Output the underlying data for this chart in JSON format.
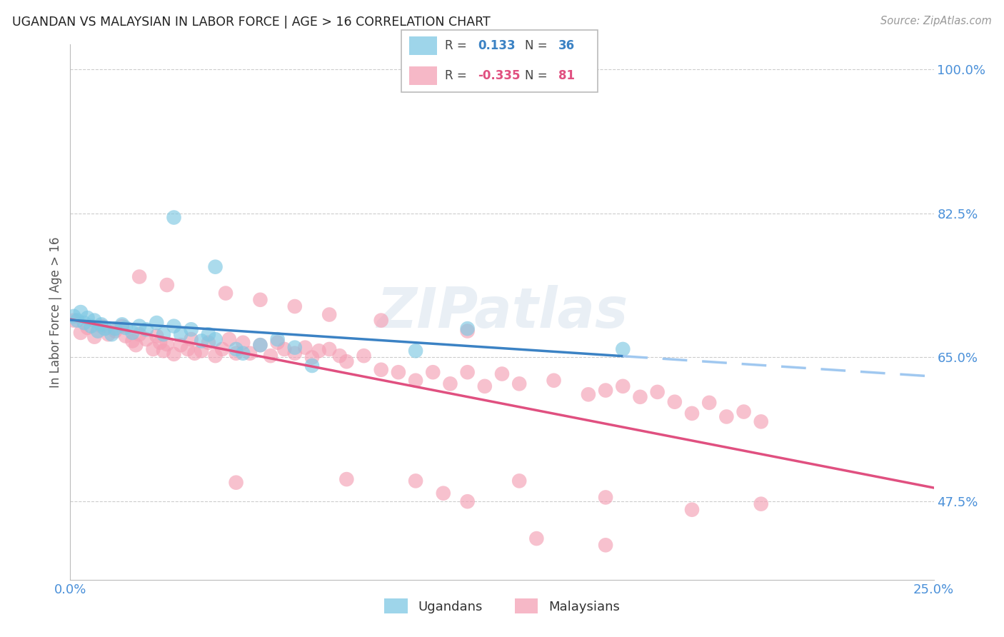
{
  "title": "UGANDAN VS MALAYSIAN IN LABOR FORCE | AGE > 16 CORRELATION CHART",
  "source": "Source: ZipAtlas.com",
  "ylabel": "In Labor Force | Age > 16",
  "xlim": [
    0.0,
    0.25
  ],
  "ylim": [
    0.38,
    1.03
  ],
  "xtick_positions": [
    0.0,
    0.05,
    0.1,
    0.15,
    0.2,
    0.25
  ],
  "xtick_labels": [
    "0.0%",
    "",
    "",
    "",
    "",
    "25.0%"
  ],
  "ytick_vals_right": [
    0.475,
    0.65,
    0.825,
    1.0
  ],
  "ytick_labels_right": [
    "47.5%",
    "65.0%",
    "82.5%",
    "100.0%"
  ],
  "r_ugandan": 0.133,
  "n_ugandan": 36,
  "r_malaysian": -0.335,
  "n_malaysian": 81,
  "ugandan_color": "#7ec8e3",
  "malaysian_color": "#f4a0b5",
  "ugandan_line_color": "#3b82c4",
  "malaysian_line_color": "#e05080",
  "trend_line_dashed_color": "#a0c8f0",
  "background_color": "#ffffff",
  "grid_color": "#cccccc",
  "axis_label_color": "#4a90d9",
  "title_color": "#222222",
  "source_color": "#999999",
  "ylabel_color": "#555555",
  "ugandan_scatter": [
    [
      0.001,
      0.7
    ],
    [
      0.002,
      0.695
    ],
    [
      0.003,
      0.705
    ],
    [
      0.004,
      0.692
    ],
    [
      0.005,
      0.698
    ],
    [
      0.006,
      0.688
    ],
    [
      0.007,
      0.695
    ],
    [
      0.008,
      0.682
    ],
    [
      0.009,
      0.69
    ],
    [
      0.01,
      0.685
    ],
    [
      0.012,
      0.678
    ],
    [
      0.013,
      0.685
    ],
    [
      0.015,
      0.69
    ],
    [
      0.016,
      0.686
    ],
    [
      0.018,
      0.68
    ],
    [
      0.02,
      0.688
    ],
    [
      0.022,
      0.684
    ],
    [
      0.025,
      0.692
    ],
    [
      0.027,
      0.678
    ],
    [
      0.03,
      0.688
    ],
    [
      0.032,
      0.678
    ],
    [
      0.035,
      0.684
    ],
    [
      0.038,
      0.67
    ],
    [
      0.04,
      0.678
    ],
    [
      0.042,
      0.672
    ],
    [
      0.048,
      0.66
    ],
    [
      0.05,
      0.655
    ],
    [
      0.055,
      0.665
    ],
    [
      0.06,
      0.672
    ],
    [
      0.065,
      0.662
    ],
    [
      0.07,
      0.64
    ],
    [
      0.1,
      0.658
    ],
    [
      0.115,
      0.685
    ],
    [
      0.16,
      0.66
    ],
    [
      0.042,
      0.76
    ],
    [
      0.03,
      0.82
    ]
  ],
  "malaysian_scatter": [
    [
      0.001,
      0.695
    ],
    [
      0.003,
      0.68
    ],
    [
      0.005,
      0.686
    ],
    [
      0.007,
      0.675
    ],
    [
      0.009,
      0.688
    ],
    [
      0.011,
      0.678
    ],
    [
      0.013,
      0.682
    ],
    [
      0.015,
      0.688
    ],
    [
      0.016,
      0.676
    ],
    [
      0.018,
      0.67
    ],
    [
      0.019,
      0.665
    ],
    [
      0.02,
      0.678
    ],
    [
      0.022,
      0.672
    ],
    [
      0.024,
      0.66
    ],
    [
      0.025,
      0.676
    ],
    [
      0.026,
      0.668
    ],
    [
      0.027,
      0.658
    ],
    [
      0.028,
      0.666
    ],
    [
      0.03,
      0.654
    ],
    [
      0.032,
      0.665
    ],
    [
      0.034,
      0.66
    ],
    [
      0.035,
      0.672
    ],
    [
      0.036,
      0.655
    ],
    [
      0.038,
      0.658
    ],
    [
      0.04,
      0.668
    ],
    [
      0.042,
      0.652
    ],
    [
      0.044,
      0.66
    ],
    [
      0.046,
      0.672
    ],
    [
      0.048,
      0.655
    ],
    [
      0.05,
      0.668
    ],
    [
      0.052,
      0.655
    ],
    [
      0.055,
      0.665
    ],
    [
      0.058,
      0.652
    ],
    [
      0.06,
      0.668
    ],
    [
      0.062,
      0.66
    ],
    [
      0.065,
      0.655
    ],
    [
      0.068,
      0.662
    ],
    [
      0.07,
      0.65
    ],
    [
      0.072,
      0.658
    ],
    [
      0.075,
      0.66
    ],
    [
      0.078,
      0.652
    ],
    [
      0.08,
      0.645
    ],
    [
      0.085,
      0.652
    ],
    [
      0.09,
      0.635
    ],
    [
      0.095,
      0.632
    ],
    [
      0.1,
      0.622
    ],
    [
      0.105,
      0.632
    ],
    [
      0.11,
      0.618
    ],
    [
      0.115,
      0.632
    ],
    [
      0.12,
      0.615
    ],
    [
      0.125,
      0.63
    ],
    [
      0.13,
      0.618
    ],
    [
      0.14,
      0.622
    ],
    [
      0.15,
      0.605
    ],
    [
      0.155,
      0.61
    ],
    [
      0.16,
      0.615
    ],
    [
      0.165,
      0.602
    ],
    [
      0.17,
      0.608
    ],
    [
      0.175,
      0.596
    ],
    [
      0.18,
      0.582
    ],
    [
      0.185,
      0.595
    ],
    [
      0.19,
      0.578
    ],
    [
      0.195,
      0.584
    ],
    [
      0.2,
      0.572
    ],
    [
      0.02,
      0.748
    ],
    [
      0.028,
      0.738
    ],
    [
      0.045,
      0.728
    ],
    [
      0.055,
      0.72
    ],
    [
      0.065,
      0.712
    ],
    [
      0.075,
      0.702
    ],
    [
      0.09,
      0.695
    ],
    [
      0.115,
      0.682
    ],
    [
      0.048,
      0.498
    ],
    [
      0.08,
      0.502
    ],
    [
      0.1,
      0.5
    ],
    [
      0.13,
      0.5
    ],
    [
      0.108,
      0.485
    ],
    [
      0.155,
      0.48
    ],
    [
      0.115,
      0.475
    ],
    [
      0.2,
      0.472
    ],
    [
      0.135,
      0.43
    ],
    [
      0.155,
      0.422
    ],
    [
      0.18,
      0.465
    ]
  ]
}
